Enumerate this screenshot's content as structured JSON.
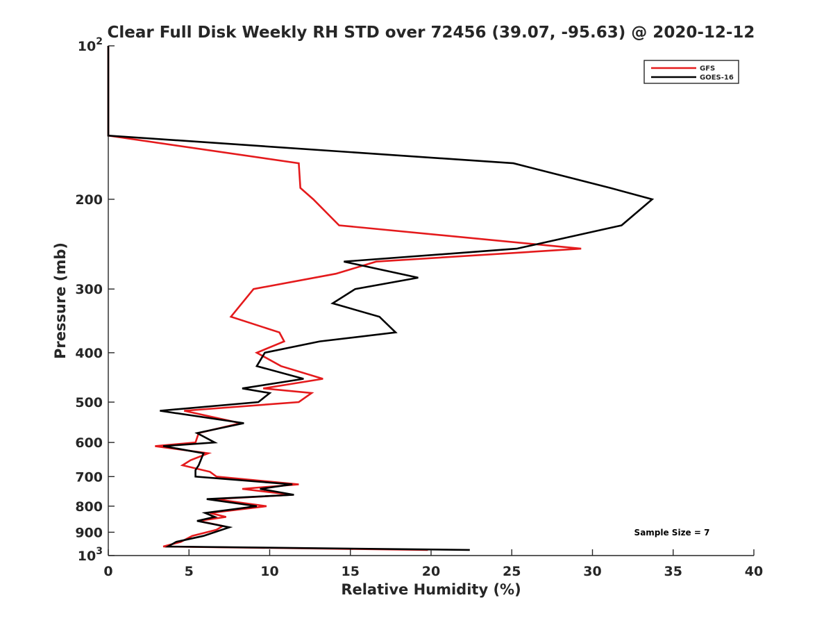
{
  "chart_data": {
    "type": "line",
    "title": "Clear Full Disk Weekly RH STD over 72456 (39.07, -95.63) @ 2020-12-12",
    "xlabel": "Relative Humidity (%)",
    "ylabel": "Pressure (mb)",
    "xlim": [
      0,
      40
    ],
    "ylim": [
      100,
      1000
    ],
    "yscale": "log",
    "y_reversed": true,
    "grid": false,
    "legend_position": "top-right",
    "x_ticks": [
      0,
      5,
      10,
      15,
      20,
      25,
      30,
      35,
      40
    ],
    "x_tick_labels": [
      "0",
      "5",
      "10",
      "15",
      "20",
      "25",
      "30",
      "35",
      "40"
    ],
    "y_ticks": [
      100,
      200,
      300,
      400,
      500,
      600,
      700,
      800,
      900,
      1000
    ],
    "y_tick_labels": [
      {
        "base": "10",
        "exp": "2"
      },
      {
        "base": "200",
        "exp": ""
      },
      {
        "base": "300",
        "exp": ""
      },
      {
        "base": "400",
        "exp": ""
      },
      {
        "base": "500",
        "exp": ""
      },
      {
        "base": "600",
        "exp": ""
      },
      {
        "base": "700",
        "exp": ""
      },
      {
        "base": "800",
        "exp": ""
      },
      {
        "base": "900",
        "exp": ""
      },
      {
        "base": "10",
        "exp": "3"
      }
    ],
    "annotation": "Sample Size = 7",
    "series": [
      {
        "name": "GFS",
        "color": "#e41a1c",
        "points": [
          [
            0,
            100
          ],
          [
            0,
            125
          ],
          [
            0,
            150
          ],
          [
            11.8,
            170
          ],
          [
            11.9,
            190
          ],
          [
            12.7,
            200
          ],
          [
            14.3,
            225
          ],
          [
            29.3,
            250
          ],
          [
            16.6,
            265
          ],
          [
            14.1,
            280
          ],
          [
            9.0,
            300
          ],
          [
            7.6,
            340
          ],
          [
            10.6,
            365
          ],
          [
            10.9,
            380
          ],
          [
            9.2,
            400
          ],
          [
            10.7,
            425
          ],
          [
            13.3,
            450
          ],
          [
            9.6,
            470
          ],
          [
            12.6,
            480
          ],
          [
            11.8,
            500
          ],
          [
            4.7,
            520
          ],
          [
            8.2,
            550
          ],
          [
            5.6,
            575
          ],
          [
            5.4,
            600
          ],
          [
            2.9,
            610
          ],
          [
            6.2,
            630
          ],
          [
            5.1,
            650
          ],
          [
            4.6,
            665
          ],
          [
            6.3,
            685
          ],
          [
            6.7,
            700
          ],
          [
            11.8,
            725
          ],
          [
            8.3,
            740
          ],
          [
            11.4,
            760
          ],
          [
            6.6,
            775
          ],
          [
            9.8,
            800
          ],
          [
            6.3,
            825
          ],
          [
            7.3,
            840
          ],
          [
            5.6,
            855
          ],
          [
            7.1,
            875
          ],
          [
            6.7,
            890
          ],
          [
            5.2,
            915
          ],
          [
            4.5,
            940
          ],
          [
            3.4,
            960
          ],
          [
            19.8,
            975
          ]
        ]
      },
      {
        "name": "GOES-16",
        "color": "#000000",
        "points": [
          [
            0,
            100
          ],
          [
            0,
            125
          ],
          [
            0,
            150
          ],
          [
            25.1,
            170
          ],
          [
            31.1,
            190
          ],
          [
            33.7,
            200
          ],
          [
            31.8,
            225
          ],
          [
            25.3,
            250
          ],
          [
            14.6,
            265
          ],
          [
            19.2,
            285
          ],
          [
            15.3,
            300
          ],
          [
            13.9,
            320
          ],
          [
            16.8,
            340
          ],
          [
            17.8,
            365
          ],
          [
            13.1,
            380
          ],
          [
            9.7,
            400
          ],
          [
            9.2,
            425
          ],
          [
            12.1,
            450
          ],
          [
            8.3,
            470
          ],
          [
            10.0,
            480
          ],
          [
            9.3,
            500
          ],
          [
            3.2,
            520
          ],
          [
            8.4,
            550
          ],
          [
            5.5,
            575
          ],
          [
            6.6,
            600
          ],
          [
            3.4,
            610
          ],
          [
            5.9,
            630
          ],
          [
            5.6,
            665
          ],
          [
            5.4,
            680
          ],
          [
            5.4,
            700
          ],
          [
            11.4,
            725
          ],
          [
            9.4,
            740
          ],
          [
            11.5,
            760
          ],
          [
            6.1,
            775
          ],
          [
            9.2,
            800
          ],
          [
            6.0,
            825
          ],
          [
            6.6,
            840
          ],
          [
            5.5,
            855
          ],
          [
            7.5,
            880
          ],
          [
            5.9,
            915
          ],
          [
            4.2,
            940
          ],
          [
            3.7,
            960
          ],
          [
            22.4,
            975
          ]
        ]
      }
    ]
  }
}
